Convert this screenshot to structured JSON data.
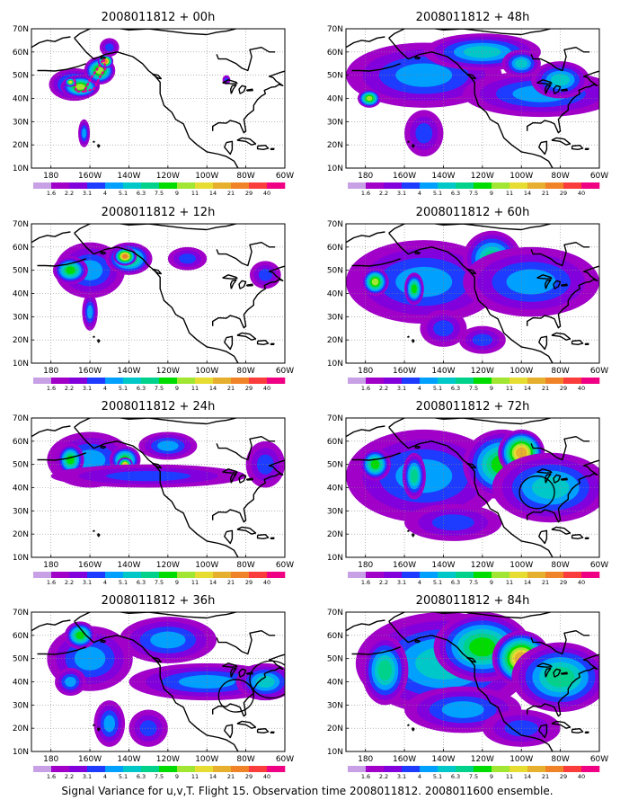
{
  "figure": {
    "caption": "Signal Variance for u,v,T. Flight 15. Observation time 2008011812. 2008011600 ensemble."
  },
  "colorbar": {
    "levels": [
      "1.6",
      "2.2",
      "3.1",
      "4",
      "5.1",
      "6.3",
      "7.5",
      "9",
      "11",
      "14",
      "21",
      "29",
      "40"
    ],
    "colors": [
      "#a000c8",
      "#8200dc",
      "#1e3cff",
      "#00a0ff",
      "#00c8c8",
      "#00d28c",
      "#00dc00",
      "#a0e632",
      "#e6dc32",
      "#e6af2d",
      "#f08228",
      "#fa3c3c",
      "#f00082"
    ]
  },
  "axes": {
    "lat_labels": [
      "10N",
      "20N",
      "30N",
      "40N",
      "50N",
      "60N",
      "70N"
    ],
    "lon_labels": [
      "180",
      "160W",
      "140W",
      "120W",
      "100W",
      "80W",
      "60W"
    ]
  },
  "panels": [
    {
      "title": "2008011812 + 00h",
      "blobs": [
        [
          -168,
          46,
          13,
          7,
          4
        ],
        [
          -165,
          45,
          10,
          5,
          7
        ],
        [
          -155,
          52,
          8,
          6,
          7
        ],
        [
          -152,
          56,
          4,
          3,
          10
        ],
        [
          -170,
          47,
          3,
          2,
          8
        ],
        [
          -163,
          25,
          3,
          6,
          3
        ],
        [
          -150,
          62,
          5,
          4,
          2
        ],
        [
          -90,
          48,
          2,
          2,
          2
        ]
      ],
      "dotted_track": true,
      "circles": []
    },
    {
      "title": "2008011812 + 12h",
      "blobs": [
        [
          -160,
          50,
          18,
          12,
          3
        ],
        [
          -170,
          50,
          9,
          6,
          6
        ],
        [
          -140,
          55,
          12,
          7,
          6
        ],
        [
          -142,
          56,
          6,
          4,
          10
        ],
        [
          -160,
          32,
          4,
          8,
          3
        ],
        [
          -110,
          55,
          10,
          5,
          2
        ],
        [
          -70,
          48,
          8,
          6,
          2
        ]
      ],
      "dotted_track": false,
      "circles": []
    },
    {
      "title": "2008011812 + 24h",
      "blobs": [
        [
          -160,
          52,
          22,
          12,
          3
        ],
        [
          -170,
          52,
          7,
          7,
          6
        ],
        [
          -142,
          52,
          8,
          6,
          6
        ],
        [
          -142,
          50,
          4,
          3,
          9
        ],
        [
          -130,
          45,
          50,
          5,
          2
        ],
        [
          -70,
          50,
          10,
          10,
          2
        ],
        [
          -120,
          58,
          15,
          6,
          3
        ]
      ],
      "dotted_track": false,
      "circles": []
    },
    {
      "title": "2008011812 + 36h",
      "blobs": [
        [
          -160,
          50,
          22,
          14,
          3
        ],
        [
          -165,
          60,
          8,
          6,
          6
        ],
        [
          -170,
          40,
          8,
          6,
          3
        ],
        [
          -120,
          58,
          25,
          10,
          3
        ],
        [
          -100,
          40,
          40,
          8,
          3
        ],
        [
          -70,
          40,
          15,
          8,
          4
        ],
        [
          -150,
          22,
          8,
          10,
          3
        ],
        [
          -130,
          20,
          10,
          8,
          2
        ]
      ],
      "dotted_track": false,
      "circles": [
        [
          -85,
          34,
          9,
          7
        ],
        [
          -67,
          41,
          11,
          8
        ]
      ]
    },
    {
      "title": "2008011812 + 48h",
      "blobs": [
        [
          -150,
          50,
          40,
          14,
          3
        ],
        [
          -178,
          40,
          6,
          4,
          7
        ],
        [
          -120,
          60,
          30,
          8,
          4
        ],
        [
          -90,
          42,
          40,
          10,
          3
        ],
        [
          -80,
          48,
          15,
          8,
          4
        ],
        [
          -150,
          25,
          10,
          10,
          2
        ],
        [
          -100,
          55,
          10,
          6,
          4
        ]
      ],
      "dotted_track": false,
      "circles": []
    },
    {
      "title": "2008011812 + 60h",
      "blobs": [
        [
          -150,
          45,
          40,
          18,
          3
        ],
        [
          -175,
          45,
          7,
          6,
          7
        ],
        [
          -155,
          42,
          5,
          7,
          6
        ],
        [
          -115,
          55,
          15,
          12,
          5
        ],
        [
          -95,
          45,
          35,
          15,
          3
        ],
        [
          -140,
          25,
          12,
          8,
          2
        ],
        [
          -120,
          20,
          12,
          6,
          2
        ]
      ],
      "dotted_track": false,
      "circles": []
    },
    {
      "title": "2008011812 + 72h",
      "blobs": [
        [
          -150,
          45,
          40,
          20,
          3
        ],
        [
          -175,
          50,
          8,
          7,
          6
        ],
        [
          -155,
          45,
          6,
          10,
          5
        ],
        [
          -110,
          50,
          20,
          15,
          6
        ],
        [
          -100,
          55,
          12,
          10,
          9
        ],
        [
          -85,
          40,
          30,
          15,
          4
        ],
        [
          -135,
          25,
          25,
          8,
          2
        ]
      ],
      "dotted_track": false,
      "circles": [
        [
          -92,
          38,
          9,
          7
        ]
      ]
    },
    {
      "title": "2008011812 + 84h",
      "blobs": [
        [
          -140,
          48,
          45,
          22,
          4
        ],
        [
          -170,
          45,
          12,
          15,
          5
        ],
        [
          -120,
          55,
          25,
          15,
          6
        ],
        [
          -100,
          50,
          15,
          12,
          9
        ],
        [
          -80,
          42,
          25,
          15,
          5
        ],
        [
          -130,
          28,
          30,
          10,
          3
        ],
        [
          -100,
          20,
          20,
          8,
          2
        ]
      ],
      "dotted_track": false,
      "circles": []
    }
  ]
}
